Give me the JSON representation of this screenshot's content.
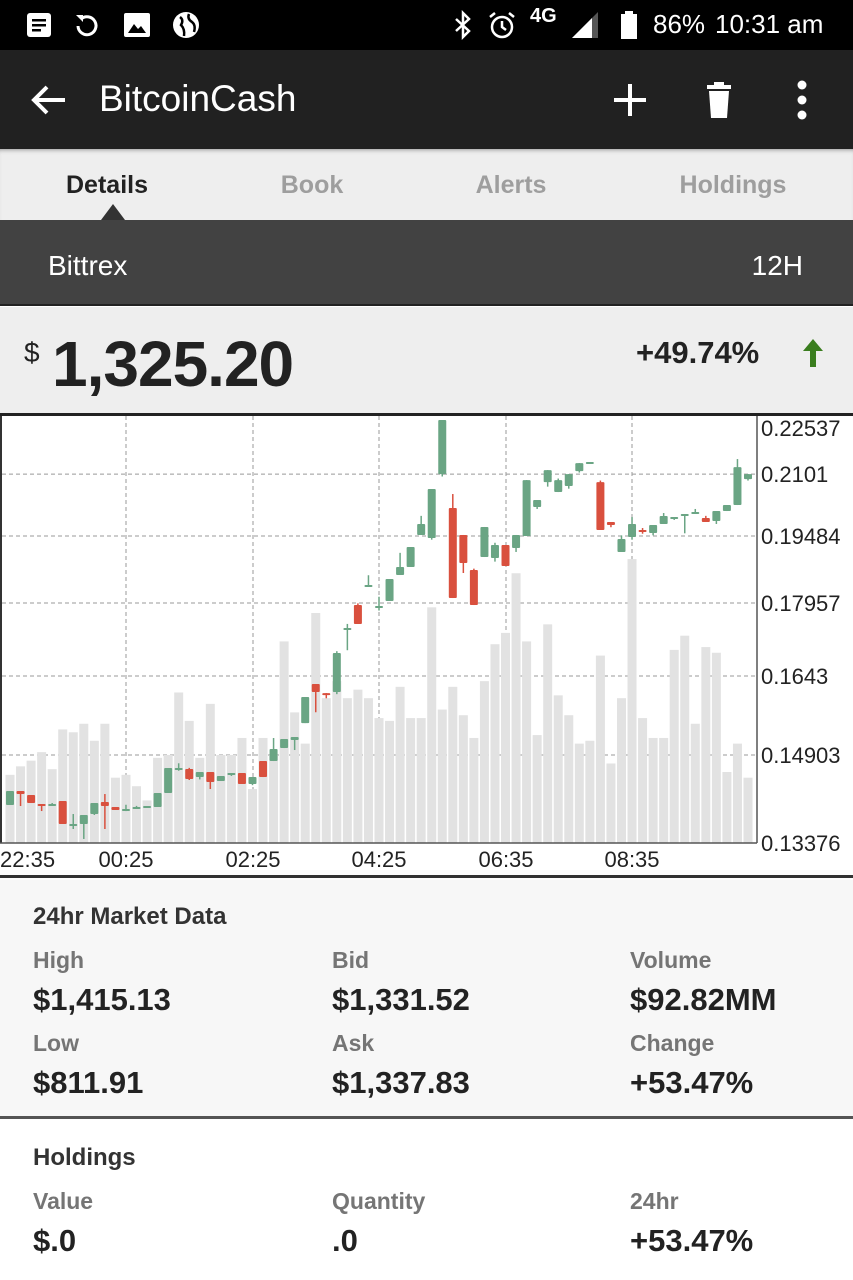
{
  "status_bar": {
    "battery": "86%",
    "time": "10:31 am",
    "network": "4G",
    "icons": [
      "notes-icon",
      "sync-icon",
      "image-icon",
      "globe-icon",
      "bluetooth-icon",
      "alarm-icon",
      "signal-icon",
      "battery-icon"
    ]
  },
  "app_bar": {
    "title": "BitcoinCash",
    "icons": [
      "back-arrow-icon",
      "add-icon",
      "trash-icon",
      "more-vert-icon"
    ]
  },
  "tabs": [
    {
      "label": "Details",
      "active": true
    },
    {
      "label": "Book"
    },
    {
      "label": "Alerts"
    },
    {
      "label": "Holdings"
    }
  ],
  "exchange": {
    "name": "Bittrex",
    "interval": "12H"
  },
  "price": {
    "currency": "$",
    "value": "1,325.20",
    "change": "+49.74%",
    "trend": "up",
    "up_color": "#3a7d1e"
  },
  "chart_data": {
    "type": "candlestick",
    "colors": {
      "up": "#6aa584",
      "down": "#d9503e",
      "volume": "#e2e2e2"
    },
    "y_ticks": [
      "0.22537",
      "0.2101",
      "0.19484",
      "0.17957",
      "0.1643",
      "0.14903",
      "0.13376"
    ],
    "x_ticks": [
      "22:35",
      "00:25",
      "02:25",
      "04:25",
      "06:35",
      "08:35"
    ],
    "grid": true,
    "candles_ohlc": [
      [
        0.14036,
        0.14278,
        0.14036,
        0.14278
      ],
      [
        0.14278,
        0.14278,
        0.14018,
        0.14226
      ],
      [
        0.14209,
        0.14209,
        0.1407,
        0.1407
      ],
      [
        0.14053,
        0.14053,
        0.13931,
        0.14036
      ],
      [
        0.14053,
        0.1407,
        0.14036,
        0.14053
      ],
      [
        0.14105,
        0.14105,
        0.13706,
        0.13706
      ],
      [
        0.13706,
        0.13879,
        0.13619,
        0.13706
      ],
      [
        0.13706,
        0.13862,
        0.13446,
        0.13862
      ],
      [
        0.13879,
        0.1407,
        0.13862,
        0.1407
      ],
      [
        0.14088,
        0.14226,
        0.13619,
        0.14018
      ],
      [
        0.14001,
        0.14001,
        0.13949,
        0.13949
      ],
      [
        0.13966,
        0.1404,
        0.1393,
        0.13966
      ],
      [
        0.14001,
        0.1402,
        0.1399,
        0.14001
      ],
      [
        0.13984,
        0.14018,
        0.13984,
        0.14018
      ],
      [
        0.14001,
        0.14244,
        0.14001,
        0.14244
      ],
      [
        0.14244,
        0.14677,
        0.14244,
        0.14677
      ],
      [
        0.14677,
        0.1476,
        0.1463,
        0.14677
      ],
      [
        0.1466,
        0.1468,
        0.1447,
        0.14487
      ],
      [
        0.14521,
        0.14608,
        0.1448,
        0.14608
      ],
      [
        0.14608,
        0.14608,
        0.14313,
        0.14435
      ],
      [
        0.14452,
        0.14539,
        0.14452,
        0.14539
      ],
      [
        0.14556,
        0.14591,
        0.1454,
        0.14591
      ],
      [
        0.14591,
        0.14591,
        0.144,
        0.144
      ],
      [
        0.144,
        0.14521,
        0.1438,
        0.14521
      ],
      [
        0.14799,
        0.14799,
        0.14521,
        0.14521
      ],
      [
        0.14799,
        0.15232,
        0.14799,
        0.15019
      ],
      [
        0.15038,
        0.15212,
        0.15038,
        0.15212
      ],
      [
        0.15193,
        0.15251,
        0.15,
        0.15251
      ],
      [
        0.15521,
        0.16024,
        0.15521,
        0.16024
      ],
      [
        0.16275,
        0.16275,
        0.1573,
        0.16121
      ],
      [
        0.16101,
        0.16101,
        0.16,
        0.16063
      ],
      [
        0.16121,
        0.1695,
        0.1608,
        0.16911
      ],
      [
        0.17434,
        0.1752,
        0.1697,
        0.17434
      ],
      [
        0.17915,
        0.1795,
        0.17518,
        0.17518
      ],
      [
        0.18367,
        0.1859,
        0.18367,
        0.18367
      ],
      [
        0.17894,
        0.181,
        0.178,
        0.17894
      ],
      [
        0.18003,
        0.18504,
        0.18003,
        0.18504
      ],
      [
        0.18595,
        0.191,
        0.18595,
        0.18778
      ],
      [
        0.18778,
        0.19233,
        0.18778,
        0.19233
      ],
      [
        0.19509,
        0.1998,
        0.19509,
        0.1978
      ],
      [
        0.19438,
        0.20641,
        0.194,
        0.20641
      ],
      [
        0.2101,
        0.22432,
        0.2095,
        0.22432
      ],
      [
        0.20173,
        0.20518,
        0.18071,
        0.18071
      ],
      [
        0.19509,
        0.19509,
        0.18641,
        0.18869
      ],
      [
        0.18709,
        0.1874,
        0.17915,
        0.17915
      ],
      [
        0.19005,
        0.19706,
        0.19005,
        0.19706
      ],
      [
        0.18983,
        0.1933,
        0.189,
        0.19279
      ],
      [
        0.19279,
        0.19279,
        0.188,
        0.188
      ],
      [
        0.19211,
        0.19509,
        0.1912,
        0.19509
      ],
      [
        0.19484,
        0.20862,
        0.19484,
        0.20862
      ],
      [
        0.20198,
        0.2037,
        0.2015,
        0.2037
      ],
      [
        0.20813,
        0.21115,
        0.207,
        0.21115
      ],
      [
        0.20567,
        0.209,
        0.20567,
        0.20862
      ],
      [
        0.20715,
        0.2101,
        0.2065,
        0.2101
      ],
      [
        0.21089,
        0.21299,
        0.2105,
        0.21299
      ],
      [
        0.21326,
        0.21326,
        0.21326,
        0.21326
      ],
      [
        0.20813,
        0.2085,
        0.19633,
        0.19633
      ],
      [
        0.19829,
        0.19829,
        0.197,
        0.19755
      ],
      [
        0.19119,
        0.195,
        0.19119,
        0.19416
      ],
      [
        0.19461,
        0.1995,
        0.194,
        0.1978
      ],
      [
        0.19633,
        0.1968,
        0.1954,
        0.19584
      ],
      [
        0.19559,
        0.19755,
        0.195,
        0.19755
      ],
      [
        0.1978,
        0.2005,
        0.1978,
        0.19976
      ],
      [
        0.19903,
        0.19952,
        0.1988,
        0.19952
      ],
      [
        0.20026,
        0.20026,
        0.1955,
        0.20026
      ],
      [
        0.20026,
        0.2015,
        0.20026,
        0.20075
      ],
      [
        0.19927,
        0.1998,
        0.19829,
        0.19829
      ],
      [
        0.19853,
        0.20099,
        0.1978,
        0.20099
      ],
      [
        0.20099,
        0.20247,
        0.20099,
        0.20247
      ],
      [
        0.20247,
        0.21405,
        0.20247,
        0.21194
      ],
      [
        0.20887,
        0.2101,
        0.2085,
        0.2101
      ]
    ],
    "volume_relative_pct": [
      24,
      27,
      29,
      32,
      26,
      40,
      39,
      42,
      36,
      42,
      23,
      24,
      20,
      15,
      30,
      31,
      53,
      43,
      30,
      49,
      31,
      31,
      37,
      19,
      37,
      31,
      71,
      46,
      35,
      81,
      51,
      57,
      51,
      54,
      51,
      44,
      43,
      55,
      44,
      44,
      83,
      47,
      55,
      45,
      37,
      57,
      70,
      74,
      95,
      71,
      38,
      77,
      52,
      45,
      35,
      36,
      66,
      28,
      51,
      100,
      44,
      37,
      37,
      68,
      73,
      42,
      69,
      67,
      25,
      35,
      23
    ]
  },
  "market_data": {
    "title": "24hr Market Data",
    "items": [
      {
        "label": "High",
        "value": "$1,415.13"
      },
      {
        "label": "Bid",
        "value": "$1,331.52"
      },
      {
        "label": "Volume",
        "value": "$92.82MM"
      },
      {
        "label": "Low",
        "value": "$811.91"
      },
      {
        "label": "Ask",
        "value": "$1,337.83"
      },
      {
        "label": "Change",
        "value": "+53.47%"
      }
    ]
  },
  "holdings": {
    "title": "Holdings",
    "items": [
      {
        "label": "Value",
        "value": "$.0"
      },
      {
        "label": "Quantity",
        "value": ".0"
      },
      {
        "label": "24hr",
        "value": "+53.47%"
      }
    ]
  }
}
